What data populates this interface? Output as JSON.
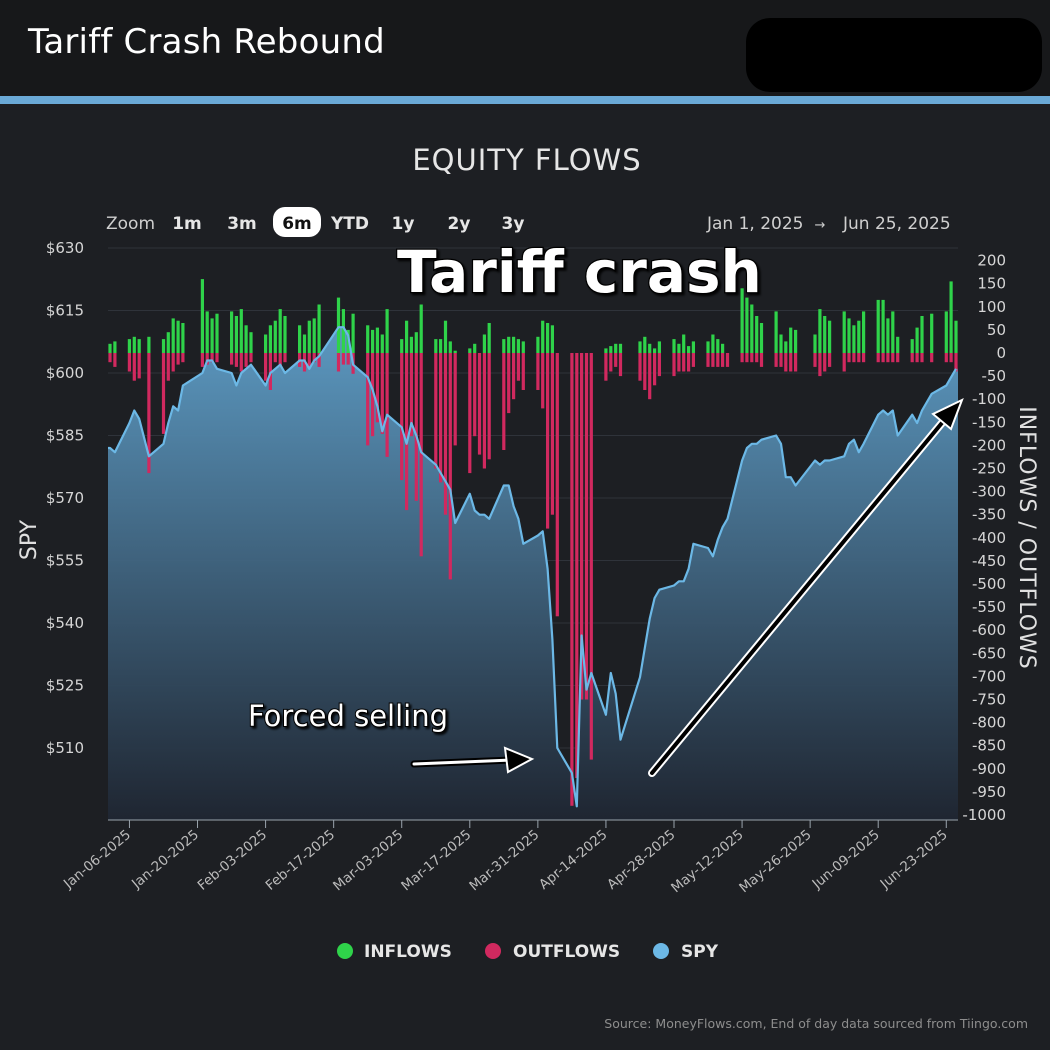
{
  "header": {
    "title": "Tariff Crash Rebound"
  },
  "colors": {
    "accent_line": "#6aa9d6",
    "inflows": "#2fd34a",
    "outflows": "#d1295f",
    "spy_line": "#6cb8e6",
    "spy_fill_top": "#5f9fc9",
    "spy_fill_bottom": "#1f2632"
  },
  "toolbar": {
    "zoom_label": "Zoom",
    "options": [
      "1m",
      "3m",
      "6m",
      "YTD",
      "1y",
      "2y",
      "3y"
    ],
    "selected": "6m",
    "date_from": "Jan 1, 2025",
    "date_arrow": "→",
    "date_to": "Jun 25, 2025"
  },
  "annotations": {
    "tariff_crash": "Tariff crash",
    "forced_selling": "Forced selling"
  },
  "footer": {
    "source": "Source: MoneyFlows.com, End of day data sourced from Tiingo.com"
  },
  "chart_data": {
    "type": "bar",
    "title": "EQUITY FLOWS",
    "ylabel_left": "SPY",
    "ylabel_right": "INFLOWS / OUTFLOWS",
    "left_axis": {
      "ticks": [
        630,
        615,
        600,
        585,
        570,
        555,
        540,
        525,
        510
      ],
      "tick_prefix": "$",
      "range": [
        495,
        630
      ]
    },
    "right_axis": {
      "ticks": [
        200,
        150,
        100,
        50,
        0,
        -50,
        -100,
        -150,
        -200,
        -250,
        -300,
        -350,
        -400,
        -450,
        -500,
        -550,
        -600,
        -650,
        -700,
        -750,
        -800,
        -850,
        -900,
        -950,
        -1000
      ],
      "range": [
        -1000,
        200
      ]
    },
    "grid": true,
    "legend_position": "bottom-center",
    "legend": [
      "INFLOWS",
      "OUTFLOWS",
      "SPY"
    ],
    "x_tick_labels": [
      "Jan-06-2025",
      "Jan-20-2025",
      "Feb-03-2025",
      "Feb-17-2025",
      "Mar-03-2025",
      "Mar-17-2025",
      "Mar-31-2025",
      "Apr-14-2025",
      "Apr-28-2025",
      "May-12-2025",
      "May-26-2025",
      "Jun-09-2025",
      "Jun-23-2025"
    ],
    "dates": [
      "2025-01-02",
      "2025-01-03",
      "2025-01-06",
      "2025-01-07",
      "2025-01-08",
      "2025-01-10",
      "2025-01-13",
      "2025-01-14",
      "2025-01-15",
      "2025-01-16",
      "2025-01-17",
      "2025-01-21",
      "2025-01-22",
      "2025-01-23",
      "2025-01-24",
      "2025-01-27",
      "2025-01-28",
      "2025-01-29",
      "2025-01-30",
      "2025-01-31",
      "2025-02-03",
      "2025-02-04",
      "2025-02-05",
      "2025-02-06",
      "2025-02-07",
      "2025-02-10",
      "2025-02-11",
      "2025-02-12",
      "2025-02-13",
      "2025-02-14",
      "2025-02-18",
      "2025-02-19",
      "2025-02-20",
      "2025-02-21",
      "2025-02-24",
      "2025-02-25",
      "2025-02-26",
      "2025-02-27",
      "2025-02-28",
      "2025-03-03",
      "2025-03-04",
      "2025-03-05",
      "2025-03-06",
      "2025-03-07",
      "2025-03-10",
      "2025-03-11",
      "2025-03-12",
      "2025-03-13",
      "2025-03-14",
      "2025-03-17",
      "2025-03-18",
      "2025-03-19",
      "2025-03-20",
      "2025-03-21",
      "2025-03-24",
      "2025-03-25",
      "2025-03-26",
      "2025-03-27",
      "2025-03-28",
      "2025-03-31",
      "2025-04-01",
      "2025-04-02",
      "2025-04-03",
      "2025-04-04",
      "2025-04-07",
      "2025-04-08",
      "2025-04-09",
      "2025-04-10",
      "2025-04-11",
      "2025-04-14",
      "2025-04-15",
      "2025-04-16",
      "2025-04-17",
      "2025-04-21",
      "2025-04-22",
      "2025-04-23",
      "2025-04-24",
      "2025-04-25",
      "2025-04-28",
      "2025-04-29",
      "2025-04-30",
      "2025-05-01",
      "2025-05-02",
      "2025-05-05",
      "2025-05-06",
      "2025-05-07",
      "2025-05-08",
      "2025-05-09",
      "2025-05-12",
      "2025-05-13",
      "2025-05-14",
      "2025-05-15",
      "2025-05-16",
      "2025-05-19",
      "2025-05-20",
      "2025-05-21",
      "2025-05-22",
      "2025-05-23",
      "2025-05-27",
      "2025-05-28",
      "2025-05-29",
      "2025-05-30",
      "2025-06-02",
      "2025-06-03",
      "2025-06-04",
      "2025-06-05",
      "2025-06-06",
      "2025-06-09",
      "2025-06-10",
      "2025-06-11",
      "2025-06-12",
      "2025-06-13",
      "2025-06-16",
      "2025-06-17",
      "2025-06-18",
      "2025-06-20",
      "2025-06-23",
      "2025-06-24",
      "2025-06-25"
    ],
    "series": [
      {
        "name": "SPY",
        "type": "area",
        "values": [
          582,
          581,
          588,
          591,
          589,
          580,
          583,
          588,
          592,
          591,
          597,
          600,
          603,
          603,
          601,
          600,
          597,
          600,
          601,
          602,
          597,
          600,
          601,
          602,
          600,
          603,
          603,
          601,
          603,
          604,
          611,
          611,
          609,
          602,
          599,
          596,
          592,
          586,
          590,
          587,
          583,
          588,
          585,
          581,
          578,
          576,
          574,
          572,
          564,
          571,
          567,
          566,
          566,
          565,
          573,
          573,
          568,
          565,
          559,
          561,
          562,
          553,
          536,
          510,
          504,
          496,
          537,
          524,
          528,
          518,
          528,
          523,
          512,
          527,
          534,
          541,
          546,
          548,
          549,
          550,
          550,
          553,
          559,
          558,
          556,
          560,
          563,
          565,
          579,
          582,
          583,
          583,
          584,
          585,
          583,
          575,
          575,
          573,
          579,
          578,
          579,
          579,
          580,
          583,
          584,
          581,
          583,
          590,
          591,
          590,
          591,
          585,
          590,
          588,
          591,
          595,
          597,
          599,
          601
        ]
      },
      {
        "name": "INFLOWS",
        "type": "bar",
        "values": [
          20,
          25,
          30,
          35,
          30,
          35,
          30,
          45,
          75,
          70,
          65,
          160,
          90,
          75,
          85,
          90,
          80,
          95,
          60,
          45,
          40,
          60,
          70,
          95,
          80,
          60,
          40,
          70,
          75,
          105,
          120,
          95,
          50,
          85,
          60,
          50,
          55,
          40,
          95,
          30,
          70,
          35,
          45,
          105,
          30,
          30,
          70,
          25,
          5,
          10,
          20,
          0,
          40,
          65,
          30,
          35,
          35,
          30,
          25,
          35,
          70,
          65,
          60,
          0,
          0,
          0,
          0,
          0,
          0,
          10,
          15,
          20,
          20,
          25,
          35,
          20,
          10,
          25,
          30,
          20,
          40,
          15,
          25,
          25,
          40,
          30,
          20,
          0,
          140,
          120,
          105,
          80,
          65,
          90,
          40,
          25,
          55,
          50,
          40,
          95,
          80,
          70,
          90,
          75,
          60,
          70,
          90,
          115,
          115,
          75,
          90,
          35,
          30,
          55,
          80,
          85,
          90,
          155,
          70
        ]
      },
      {
        "name": "OUTFLOWS",
        "type": "bar",
        "values": [
          -20,
          -30,
          -40,
          -60,
          -55,
          -260,
          -175,
          -60,
          -40,
          -25,
          -20,
          -30,
          -25,
          -20,
          -20,
          -25,
          -30,
          -40,
          -30,
          -20,
          -60,
          -80,
          -20,
          -30,
          -20,
          -30,
          -40,
          -30,
          -20,
          -30,
          -40,
          -25,
          -25,
          -45,
          -200,
          -180,
          -150,
          -175,
          -225,
          -275,
          -340,
          -180,
          -320,
          -440,
          -250,
          -280,
          -350,
          -490,
          -200,
          -260,
          -180,
          -220,
          -250,
          -230,
          -210,
          -130,
          -100,
          -60,
          -80,
          -80,
          -120,
          -380,
          -350,
          -570,
          -980,
          -920,
          -750,
          -750,
          -880,
          -60,
          -40,
          -30,
          -50,
          -60,
          -80,
          -100,
          -70,
          -50,
          -50,
          -40,
          -40,
          -40,
          -30,
          -30,
          -30,
          -30,
          -30,
          -30,
          -20,
          -20,
          -20,
          -20,
          -30,
          -30,
          -30,
          -40,
          -40,
          -40,
          -30,
          -50,
          -40,
          -30,
          -40,
          -20,
          -20,
          -20,
          -20,
          -20,
          -20,
          -20,
          -20,
          -20,
          -20,
          -20,
          -20,
          -20,
          -20,
          -20,
          -40
        ]
      }
    ]
  }
}
